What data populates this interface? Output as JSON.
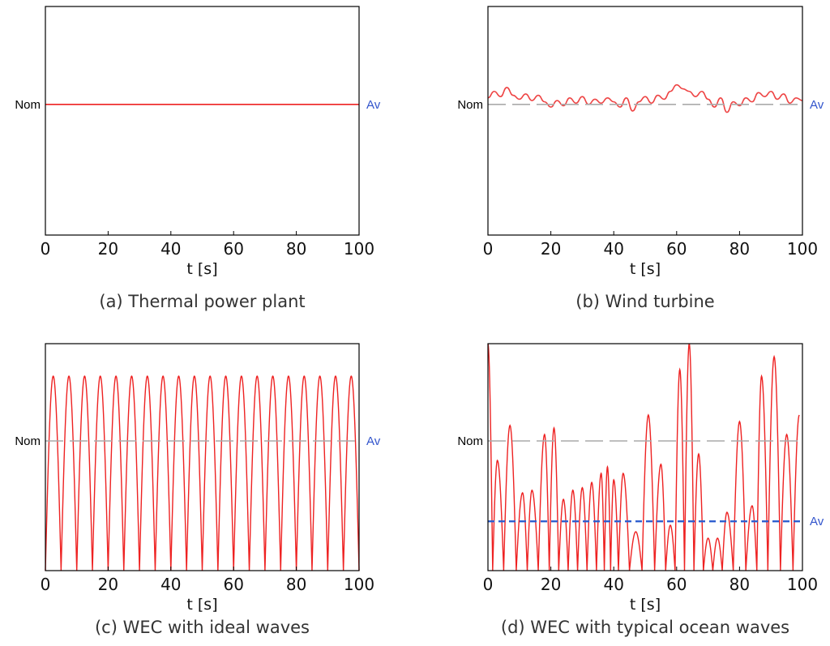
{
  "chart_data": [
    {
      "id": "a",
      "type": "line",
      "caption": "(a) Thermal power plant",
      "xlabel": "t [s]",
      "xlim": [
        0,
        100
      ],
      "ylim": [
        0,
        1.75
      ],
      "xticks": [
        "0",
        "20",
        "40",
        "60",
        "80",
        "100"
      ],
      "nominal_label": "Nom",
      "average_label": "Av",
      "nominal_value": 1.0,
      "average_value": 1.0,
      "show_nominal_line": false,
      "show_average_line": false,
      "series": [
        {
          "kind": "constant",
          "level": 1.0,
          "color": "#ee2222"
        }
      ]
    },
    {
      "id": "b",
      "type": "line",
      "caption": "(b) Wind turbine",
      "xlabel": "t [s]",
      "xlim": [
        0,
        100
      ],
      "ylim": [
        0,
        1.75
      ],
      "xticks": [
        "0",
        "20",
        "40",
        "60",
        "80",
        "100"
      ],
      "nominal_label": "Nom",
      "average_label": "Av",
      "nominal_value": 1.0,
      "average_value": 1.0,
      "show_nominal_line": true,
      "show_average_line": false,
      "series": [
        {
          "kind": "points",
          "color": "#ee4444",
          "x": [
            0,
            2,
            4,
            6,
            8,
            10,
            12,
            14,
            16,
            18,
            20,
            22,
            24,
            26,
            28,
            30,
            32,
            34,
            36,
            38,
            40,
            42,
            44,
            46,
            48,
            50,
            52,
            54,
            56,
            58,
            60,
            62,
            64,
            66,
            68,
            70,
            72,
            74,
            76,
            78,
            80,
            82,
            84,
            86,
            88,
            90,
            92,
            94,
            96,
            98,
            100
          ],
          "y": [
            1.05,
            1.1,
            1.06,
            1.13,
            1.07,
            1.04,
            1.08,
            1.03,
            1.07,
            1.02,
            0.98,
            1.03,
            0.99,
            1.05,
            1.01,
            1.06,
            1.0,
            1.04,
            1.01,
            1.05,
            1.02,
            0.98,
            1.05,
            0.95,
            1.02,
            1.06,
            1.01,
            1.07,
            1.04,
            1.1,
            1.15,
            1.12,
            1.1,
            1.06,
            1.1,
            1.04,
            0.98,
            1.05,
            0.94,
            1.02,
            0.99,
            1.05,
            1.02,
            1.09,
            1.06,
            1.1,
            1.04,
            1.08,
            1.01,
            1.05,
            1.03
          ]
        }
      ]
    },
    {
      "id": "c",
      "type": "line",
      "caption": "(c) WEC with ideal waves",
      "xlabel": "t [s]",
      "xlim": [
        0,
        100
      ],
      "ylim": [
        0,
        1.75
      ],
      "xticks": [
        "0",
        "20",
        "40",
        "60",
        "80",
        "100"
      ],
      "nominal_label": "Nom",
      "average_label": "Av",
      "nominal_value": 1.0,
      "average_value": 1.0,
      "show_nominal_line": true,
      "show_average_line": false,
      "series": [
        {
          "kind": "rectified_sine",
          "period": 10,
          "amplitude": 1.5,
          "color": "#ee2222"
        }
      ]
    },
    {
      "id": "d",
      "type": "line",
      "caption": "(d) WEC with typical ocean waves",
      "xlabel": "t [s]",
      "xlim": [
        0,
        100
      ],
      "ylim": [
        0,
        1.75
      ],
      "xticks": [
        "0",
        "20",
        "40",
        "60",
        "80",
        "100"
      ],
      "nominal_label": "Nom",
      "average_label": "Av",
      "nominal_value": 1.0,
      "average_value": 0.38,
      "show_nominal_line": true,
      "show_average_line": true,
      "series": [
        {
          "kind": "peaks",
          "color": "#ee2222",
          "x": [
            0,
            3,
            7,
            11,
            14,
            18,
            21,
            24,
            27,
            30,
            33,
            36,
            38,
            40,
            43,
            47,
            51,
            55,
            58,
            61,
            64,
            67,
            70,
            73,
            76,
            80,
            84,
            87,
            91,
            95,
            99
          ],
          "y": [
            1.75,
            0.85,
            1.12,
            0.6,
            0.62,
            1.05,
            1.1,
            0.55,
            0.62,
            0.64,
            0.68,
            0.75,
            0.8,
            0.7,
            0.75,
            0.3,
            1.2,
            0.82,
            0.35,
            1.55,
            1.75,
            0.9,
            0.25,
            0.25,
            0.45,
            1.15,
            0.5,
            1.5,
            1.65,
            1.05,
            1.2
          ]
        }
      ]
    }
  ]
}
